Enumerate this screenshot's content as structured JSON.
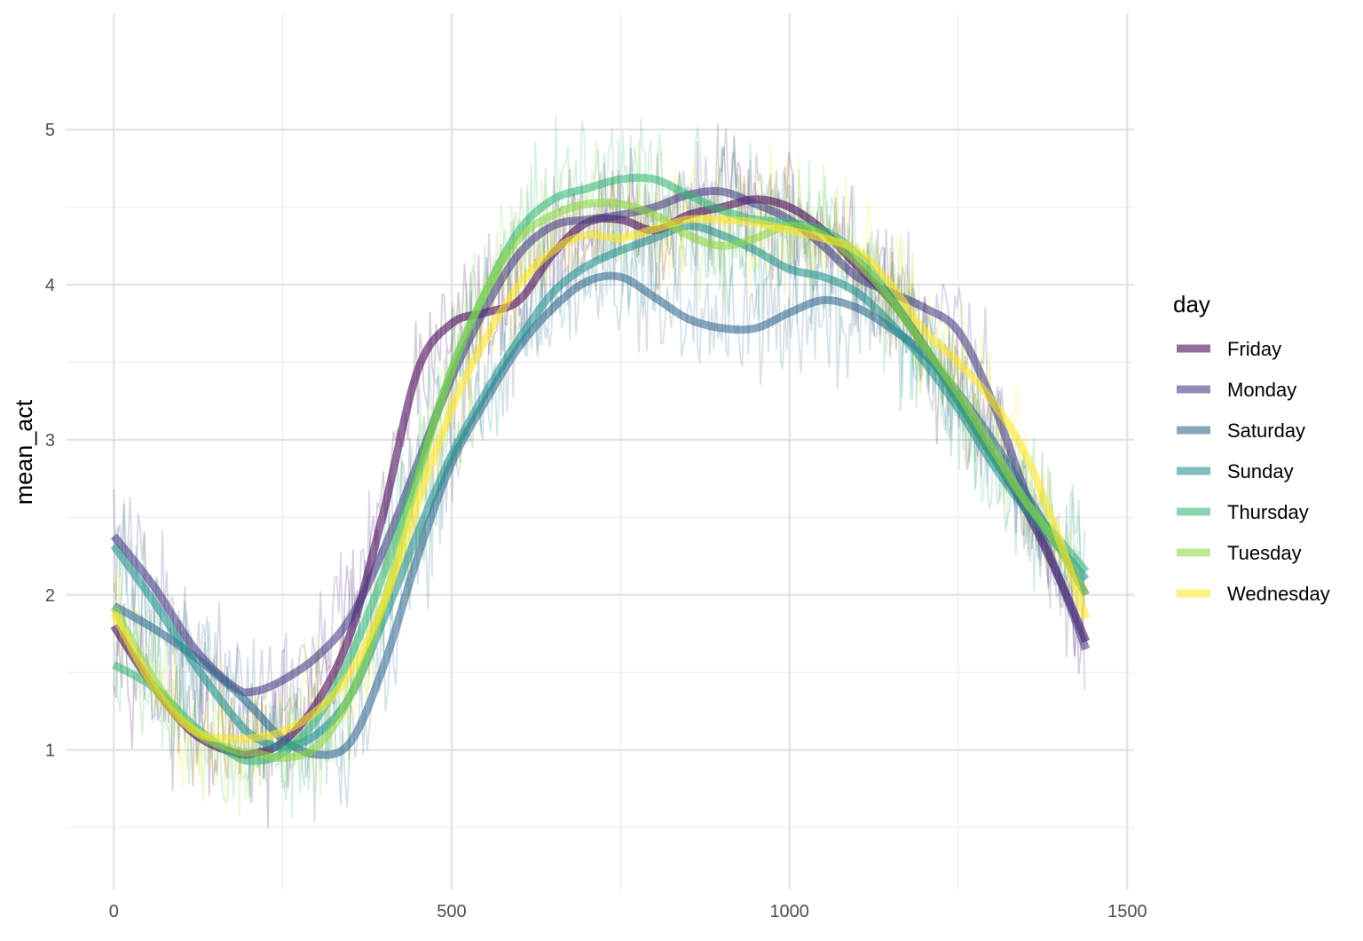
{
  "chart_data": {
    "type": "line",
    "title": "",
    "xlabel": "",
    "ylabel": "mean_act",
    "xlim": [
      -70,
      1510
    ],
    "ylim": [
      0.1,
      5.75
    ],
    "x_ticks": [
      0,
      500,
      1000,
      1500
    ],
    "y_ticks": [
      1,
      2,
      3,
      4,
      5
    ],
    "x_tick_labels": [
      "0",
      "500",
      "1000",
      "1500"
    ],
    "y_tick_labels": [
      "1",
      "2",
      "3",
      "4",
      "5"
    ],
    "grid": true,
    "legend": {
      "title": "day",
      "position": "right"
    },
    "x_range_of_data": [
      0,
      1439
    ],
    "series": [
      {
        "name": "Friday",
        "color": "#440154",
        "smooth_x": [
          0,
          60,
          120,
          180,
          210,
          250,
          300,
          350,
          400,
          450,
          500,
          550,
          600,
          650,
          700,
          750,
          800,
          850,
          900,
          950,
          1000,
          1050,
          1100,
          1150,
          1200,
          1250,
          1300,
          1350,
          1400,
          1439
        ],
        "smooth_y": [
          1.8,
          1.4,
          1.1,
          0.98,
          0.98,
          1.05,
          1.3,
          1.75,
          2.55,
          3.45,
          3.75,
          3.82,
          3.9,
          4.2,
          4.4,
          4.42,
          4.35,
          4.45,
          4.5,
          4.55,
          4.5,
          4.35,
          4.12,
          3.9,
          3.6,
          3.25,
          2.9,
          2.55,
          2.1,
          1.7
        ]
      },
      {
        "name": "Monday",
        "color": "#443a83",
        "smooth_x": [
          0,
          60,
          120,
          180,
          210,
          250,
          300,
          350,
          400,
          450,
          500,
          550,
          600,
          650,
          700,
          750,
          800,
          850,
          900,
          950,
          1000,
          1050,
          1100,
          1150,
          1200,
          1250,
          1300,
          1350,
          1400,
          1439
        ],
        "smooth_y": [
          2.38,
          2.05,
          1.65,
          1.4,
          1.38,
          1.45,
          1.6,
          1.85,
          2.3,
          2.85,
          3.4,
          3.85,
          4.2,
          4.38,
          4.42,
          4.45,
          4.5,
          4.58,
          4.6,
          4.52,
          4.42,
          4.25,
          4.05,
          3.95,
          3.85,
          3.7,
          3.25,
          2.65,
          2.1,
          1.65
        ]
      },
      {
        "name": "Saturday",
        "color": "#31688e",
        "smooth_x": [
          0,
          60,
          120,
          180,
          210,
          250,
          300,
          350,
          400,
          450,
          500,
          550,
          600,
          650,
          700,
          750,
          800,
          850,
          900,
          950,
          1000,
          1050,
          1100,
          1150,
          1200,
          1250,
          1300,
          1350,
          1400,
          1439
        ],
        "smooth_y": [
          1.93,
          1.78,
          1.6,
          1.38,
          1.25,
          1.07,
          0.97,
          1.05,
          1.55,
          2.25,
          2.85,
          3.25,
          3.6,
          3.85,
          4.02,
          4.05,
          3.92,
          3.78,
          3.72,
          3.72,
          3.82,
          3.9,
          3.85,
          3.72,
          3.55,
          3.3,
          3.0,
          2.65,
          2.3,
          2.0
        ]
      },
      {
        "name": "Sunday",
        "color": "#21908d",
        "smooth_x": [
          0,
          60,
          120,
          180,
          210,
          250,
          300,
          350,
          400,
          450,
          500,
          550,
          600,
          650,
          700,
          750,
          800,
          850,
          900,
          950,
          1000,
          1050,
          1100,
          1150,
          1200,
          1250,
          1300,
          1350,
          1400,
          1439
        ],
        "smooth_y": [
          2.32,
          1.95,
          1.55,
          1.2,
          1.08,
          1.02,
          1.1,
          1.35,
          1.85,
          2.4,
          2.9,
          3.3,
          3.65,
          3.95,
          4.12,
          4.22,
          4.3,
          4.38,
          4.32,
          4.22,
          4.1,
          4.05,
          3.95,
          3.75,
          3.5,
          3.2,
          2.85,
          2.55,
          2.3,
          2.1
        ]
      },
      {
        "name": "Thursday",
        "color": "#35b779",
        "smooth_x": [
          0,
          60,
          120,
          180,
          210,
          250,
          300,
          350,
          400,
          450,
          500,
          550,
          600,
          650,
          700,
          750,
          800,
          850,
          900,
          950,
          1000,
          1050,
          1100,
          1150,
          1200,
          1250,
          1300,
          1350,
          1400,
          1439
        ],
        "smooth_y": [
          1.55,
          1.4,
          1.15,
          0.96,
          0.93,
          0.98,
          1.2,
          1.6,
          2.15,
          2.8,
          3.45,
          3.95,
          4.35,
          4.55,
          4.62,
          4.68,
          4.68,
          4.58,
          4.48,
          4.42,
          4.4,
          4.35,
          4.2,
          3.92,
          3.6,
          3.25,
          2.9,
          2.6,
          2.35,
          2.15
        ]
      },
      {
        "name": "Tuesday",
        "color": "#8fd744",
        "smooth_x": [
          0,
          60,
          120,
          180,
          210,
          250,
          300,
          350,
          400,
          450,
          500,
          550,
          600,
          650,
          700,
          750,
          800,
          850,
          900,
          950,
          1000,
          1050,
          1100,
          1150,
          1200,
          1250,
          1300,
          1350,
          1400,
          1439
        ],
        "smooth_y": [
          1.92,
          1.45,
          1.12,
          1.0,
          0.98,
          0.95,
          1.02,
          1.35,
          1.95,
          2.75,
          3.45,
          3.95,
          4.3,
          4.45,
          4.52,
          4.52,
          4.45,
          4.32,
          4.25,
          4.3,
          4.38,
          4.32,
          4.15,
          3.9,
          3.6,
          3.3,
          2.95,
          2.6,
          2.3,
          2.0
        ]
      },
      {
        "name": "Wednesday",
        "color": "#fde725",
        "smooth_x": [
          0,
          60,
          120,
          180,
          210,
          250,
          300,
          350,
          400,
          450,
          500,
          550,
          600,
          650,
          700,
          750,
          800,
          850,
          900,
          950,
          1000,
          1050,
          1100,
          1150,
          1200,
          1250,
          1300,
          1350,
          1400,
          1439
        ],
        "smooth_y": [
          1.88,
          1.4,
          1.12,
          1.07,
          1.08,
          1.12,
          1.25,
          1.5,
          1.95,
          2.6,
          3.2,
          3.65,
          4.0,
          4.22,
          4.32,
          4.3,
          4.36,
          4.42,
          4.42,
          4.4,
          4.35,
          4.3,
          4.22,
          4.0,
          3.7,
          3.5,
          3.25,
          2.9,
          2.35,
          1.85
        ]
      }
    ]
  }
}
